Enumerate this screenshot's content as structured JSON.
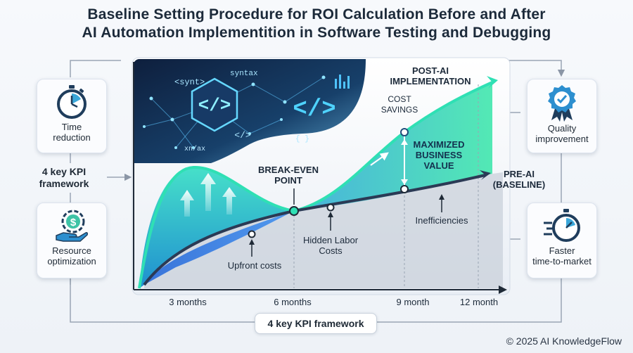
{
  "header": {
    "title_line1": "Baseline Setting Procedure for ROI Calculation Before and After",
    "title_line2": "AI Automation Implementition in Software Testing and Debugging"
  },
  "left_cards": [
    {
      "label_line1": "Time",
      "label_line2": "reduction",
      "icon": "stopwatch-icon"
    },
    {
      "label_line1": "Resource",
      "label_line2": "optimization",
      "icon": "money-gear-hand-icon"
    }
  ],
  "right_cards": [
    {
      "label_line1": "Quality",
      "label_line2": "improvement",
      "icon": "quality-badge-icon"
    },
    {
      "label_line1": "Faster",
      "label_line2": "time-to-market",
      "icon": "fast-stopwatch-icon"
    }
  ],
  "kpi_left": {
    "line1": "4 key KPI",
    "line2": "framework"
  },
  "kpi_bottom": "4 key KPI framework",
  "copyright": "© 2025 AI KnowledgeFlow",
  "code_art": {
    "synt": "<synt>",
    "syntax": "syntax",
    "xn": "xn/ax",
    "braces": "{ }",
    "tag1": "</>",
    "tag2": "</>",
    "tag3": "</>"
  },
  "chart_data": {
    "type": "line",
    "x_ticks": [
      "3 months",
      "6 months",
      "9 month",
      "12 month"
    ],
    "series": [
      {
        "name": "POST-AI IMPLEMENTATION"
      },
      {
        "name": "PRE-AI (BASELINE)"
      }
    ],
    "annotations": {
      "post_ai_line1": "POST-AI",
      "post_ai_line2": "IMPLEMENTATION",
      "pre_ai_line1": "PRE-AI",
      "pre_ai_line2": "(BASELINE)",
      "break_even_line1": "BREAK-EVEN",
      "break_even_line2": "POINT",
      "cost_savings_line1": "COST",
      "cost_savings_line2": "SAVINGS",
      "max_value_line1": "MAXIMIZED",
      "max_value_line2": "BUSINESS",
      "max_value_line3": "VALUE",
      "upfront_costs": "Upfront costs",
      "hidden_labor_line1": "Hidden Labor",
      "hidden_labor_line2": "Costs",
      "inefficiencies": "Inefficiencies"
    },
    "colors": {
      "post_ai": "#2ee6b0",
      "pre_ai": "#2b3a55",
      "area_teal": "#3fd8c4",
      "area_blue": "#2f7de8"
    }
  }
}
